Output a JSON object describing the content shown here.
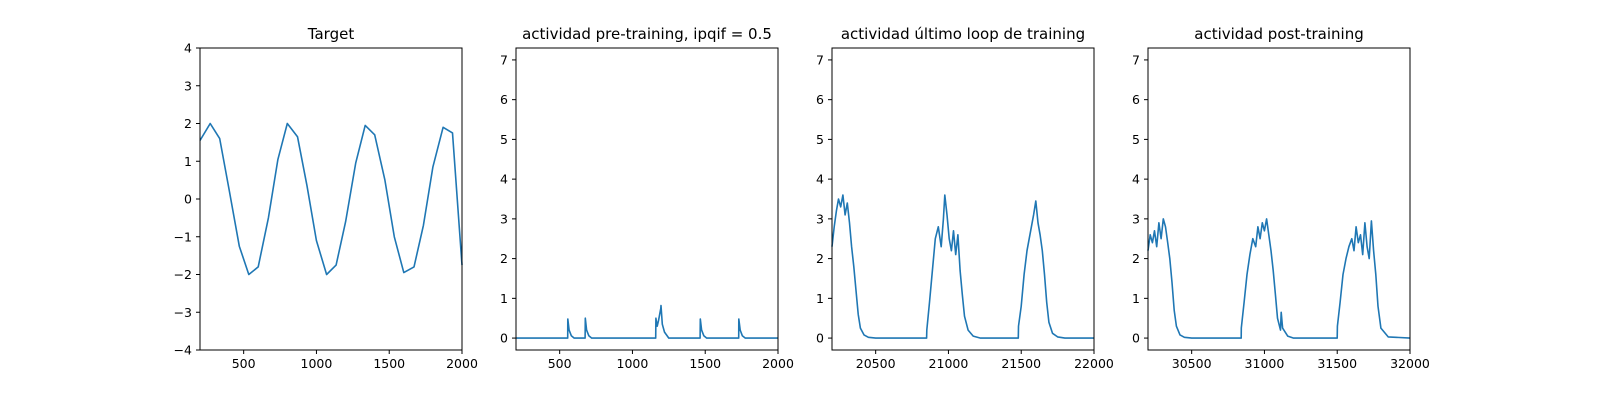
{
  "chart_data": [
    {
      "type": "line",
      "title": "Target",
      "xlim": [
        200,
        2000
      ],
      "ylim": [
        -4,
        4
      ],
      "xticks": [
        500,
        1000,
        1500,
        2000
      ],
      "xtick_labels": [
        "500",
        "1000",
        "1500",
        "2000"
      ],
      "yticks": [
        -4,
        -3,
        -2,
        -1,
        0,
        1,
        2,
        3,
        4
      ],
      "ytick_labels": [
        "−4",
        "−3",
        "−2",
        "−1",
        "0",
        "1",
        "2",
        "3",
        "4"
      ],
      "grid": false,
      "series": [
        {
          "color": "#1f77b4",
          "x": [
            200,
            270,
            335,
            400,
            470,
            535,
            600,
            670,
            735,
            800,
            870,
            935,
            1000,
            1070,
            1135,
            1200,
            1270,
            1335,
            1400,
            1470,
            1535,
            1600,
            1670,
            1735,
            1800,
            1870,
            1935,
            2000
          ],
          "y": [
            1.55,
            2.0,
            1.6,
            0.25,
            -1.25,
            -2.0,
            -1.8,
            -0.5,
            1.05,
            2.0,
            1.65,
            0.35,
            -1.1,
            -2.0,
            -1.75,
            -0.6,
            0.95,
            1.95,
            1.7,
            0.5,
            -1.0,
            -1.95,
            -1.8,
            -0.7,
            0.85,
            1.9,
            1.75,
            -1.75
          ]
        }
      ]
    },
    {
      "type": "line",
      "title": "actividad pre-training, ipqif = 0.5",
      "xlim": [
        200,
        2000
      ],
      "ylim": [
        -0.3,
        7.3
      ],
      "xticks": [
        500,
        1000,
        1500,
        2000
      ],
      "xtick_labels": [
        "500",
        "1000",
        "1500",
        "2000"
      ],
      "yticks": [
        0,
        1,
        2,
        3,
        4,
        5,
        6,
        7
      ],
      "ytick_labels": [
        "0",
        "1",
        "2",
        "3",
        "4",
        "5",
        "6",
        "7"
      ],
      "grid": false,
      "series": [
        {
          "color": "#1f77b4",
          "x": [
            200,
            555,
            556,
            565,
            580,
            600,
            675,
            676,
            685,
            700,
            720,
            1160,
            1161,
            1170,
            1180,
            1195,
            1196,
            1205,
            1220,
            1250,
            1465,
            1466,
            1475,
            1490,
            1510,
            1730,
            1731,
            1740,
            1755,
            1775,
            2000
          ],
          "y": [
            0,
            0,
            0.48,
            0.2,
            0.06,
            0,
            0,
            0.5,
            0.2,
            0.06,
            0,
            0,
            0.5,
            0.3,
            0.45,
            0.75,
            0.82,
            0.35,
            0.15,
            0,
            0,
            0.48,
            0.2,
            0.06,
            0,
            0,
            0.48,
            0.2,
            0.06,
            0,
            0
          ]
        }
      ]
    },
    {
      "type": "line",
      "title": "actividad último loop de training",
      "xlim": [
        20200,
        22000
      ],
      "ylim": [
        -0.3,
        7.3
      ],
      "xticks": [
        20500,
        21000,
        21500,
        22000
      ],
      "xtick_labels": [
        "20500",
        "21000",
        "21500",
        "22000"
      ],
      "yticks": [
        0,
        1,
        2,
        3,
        4,
        5,
        6,
        7
      ],
      "ytick_labels": [
        "0",
        "1",
        "2",
        "3",
        "4",
        "5",
        "6",
        "7"
      ],
      "grid": false,
      "series": [
        {
          "color": "#1f77b4",
          "x": [
            20200,
            20215,
            20230,
            20245,
            20260,
            20275,
            20290,
            20305,
            20320,
            20335,
            20350,
            20365,
            20380,
            20395,
            20420,
            20450,
            20500,
            20850,
            20851,
            20870,
            20890,
            20910,
            20930,
            20950,
            20965,
            20975,
            20990,
            21005,
            21020,
            21035,
            21050,
            21065,
            21080,
            21095,
            21110,
            21135,
            21170,
            21220,
            21480,
            21481,
            21500,
            21520,
            21540,
            21555,
            21570,
            21585,
            21600,
            21615,
            21630,
            21645,
            21660,
            21675,
            21690,
            21715,
            21750,
            21800,
            22000
          ],
          "y": [
            2.3,
            2.8,
            3.2,
            3.5,
            3.3,
            3.6,
            3.1,
            3.4,
            2.9,
            2.3,
            1.8,
            1.2,
            0.6,
            0.25,
            0.08,
            0.02,
            0,
            0,
            0.2,
            0.9,
            1.7,
            2.5,
            2.8,
            2.3,
            3.0,
            3.6,
            3.1,
            2.5,
            2.2,
            2.7,
            2.1,
            2.6,
            1.7,
            1.1,
            0.55,
            0.2,
            0.05,
            0,
            0,
            0.3,
            0.8,
            1.6,
            2.2,
            2.5,
            2.8,
            3.1,
            3.45,
            2.9,
            2.6,
            2.2,
            1.6,
            0.9,
            0.4,
            0.12,
            0.03,
            0,
            0
          ]
        }
      ]
    },
    {
      "type": "line",
      "title": "actividad post-training",
      "xlim": [
        30200,
        32000
      ],
      "ylim": [
        -0.3,
        7.3
      ],
      "xticks": [
        30500,
        31000,
        31500,
        32000
      ],
      "xtick_labels": [
        "30500",
        "31000",
        "31500",
        "32000"
      ],
      "yticks": [
        0,
        1,
        2,
        3,
        4,
        5,
        6,
        7
      ],
      "ytick_labels": [
        "0",
        "1",
        "2",
        "3",
        "4",
        "5",
        "6",
        "7"
      ],
      "grid": false,
      "series": [
        {
          "color": "#1f77b4",
          "x": [
            30200,
            30215,
            30230,
            30245,
            30260,
            30275,
            30290,
            30305,
            30320,
            30335,
            30350,
            30365,
            30380,
            30395,
            30420,
            30450,
            30500,
            30840,
            30841,
            30860,
            30880,
            30900,
            30920,
            30940,
            30955,
            30970,
            30985,
            31000,
            31015,
            31030,
            31045,
            31060,
            31075,
            31090,
            31110,
            31115,
            31125,
            31160,
            31200,
            31500,
            31501,
            31520,
            31540,
            31560,
            31580,
            31600,
            31615,
            31630,
            31645,
            31660,
            31675,
            31690,
            31705,
            31720,
            31735,
            31750,
            31765,
            31780,
            31800,
            31850,
            32000
          ],
          "y": [
            2.2,
            2.6,
            2.4,
            2.7,
            2.3,
            2.9,
            2.5,
            3.0,
            2.8,
            2.4,
            2.0,
            1.4,
            0.7,
            0.3,
            0.08,
            0.02,
            0,
            0,
            0.25,
            0.9,
            1.6,
            2.1,
            2.5,
            2.3,
            2.8,
            2.5,
            2.9,
            2.7,
            3.0,
            2.6,
            2.2,
            1.7,
            1.1,
            0.5,
            0.2,
            0.65,
            0.25,
            0.05,
            0,
            0,
            0.3,
            0.9,
            1.6,
            2.0,
            2.3,
            2.5,
            2.2,
            2.8,
            2.4,
            2.6,
            2.1,
            2.9,
            2.3,
            2.0,
            2.95,
            2.2,
            1.6,
            0.8,
            0.25,
            0.03,
            0
          ]
        }
      ]
    }
  ]
}
